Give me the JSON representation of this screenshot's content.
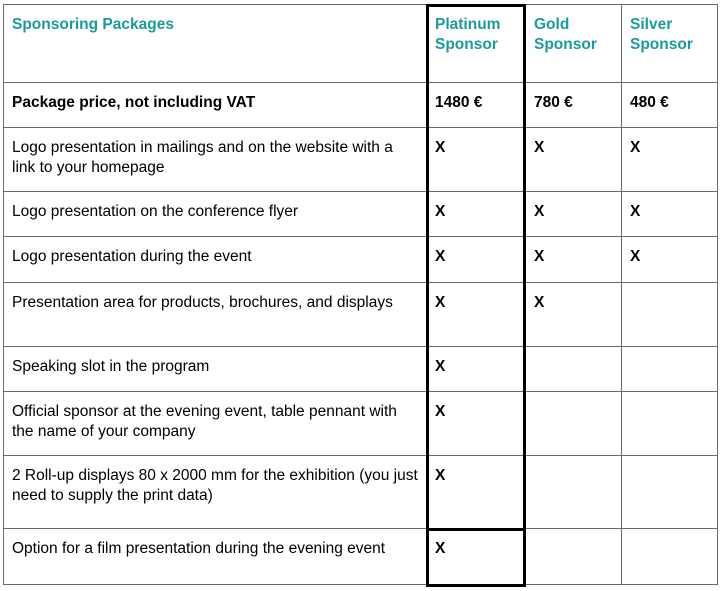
{
  "header": {
    "title": "Sponsoring Packages",
    "platinum": "Platinum Sponsor",
    "gold": "Gold Sponsor",
    "silver": "Silver Sponsor"
  },
  "rows": [
    {
      "label": "Package price, not including VAT",
      "platinum": "1480 €",
      "gold": "780 €",
      "silver": "480 €"
    },
    {
      "label": "Logo presentation in mailings and on the website with a link to your homepage",
      "platinum": "X",
      "gold": "X",
      "silver": "X"
    },
    {
      "label": "Logo presentation on the conference flyer",
      "platinum": "X",
      "gold": "X",
      "silver": "X"
    },
    {
      "label": "Logo presentation during the event",
      "platinum": "X",
      "gold": "X",
      "silver": "X"
    },
    {
      "label": "Presentation area for products, brochures, and displays",
      "platinum": "X",
      "gold": "X",
      "silver": ""
    },
    {
      "label": "Speaking slot in the program",
      "platinum": "X",
      "gold": "",
      "silver": ""
    },
    {
      "label": "Official sponsor at the evening event, table pennant with the name of your company",
      "platinum": "X",
      "gold": "",
      "silver": ""
    },
    {
      "label": "2 Roll-up displays 80 x 2000 mm for the exhibition (you just need to supply the print data)",
      "platinum": "X",
      "gold": "",
      "silver": ""
    },
    {
      "label": "Option for a film presentation during the evening event",
      "platinum": "X",
      "gold": "",
      "silver": ""
    }
  ],
  "colors": {
    "header_text": "#1a9a9a",
    "border": "#6b6b6b",
    "highlight_border": "#000000"
  }
}
